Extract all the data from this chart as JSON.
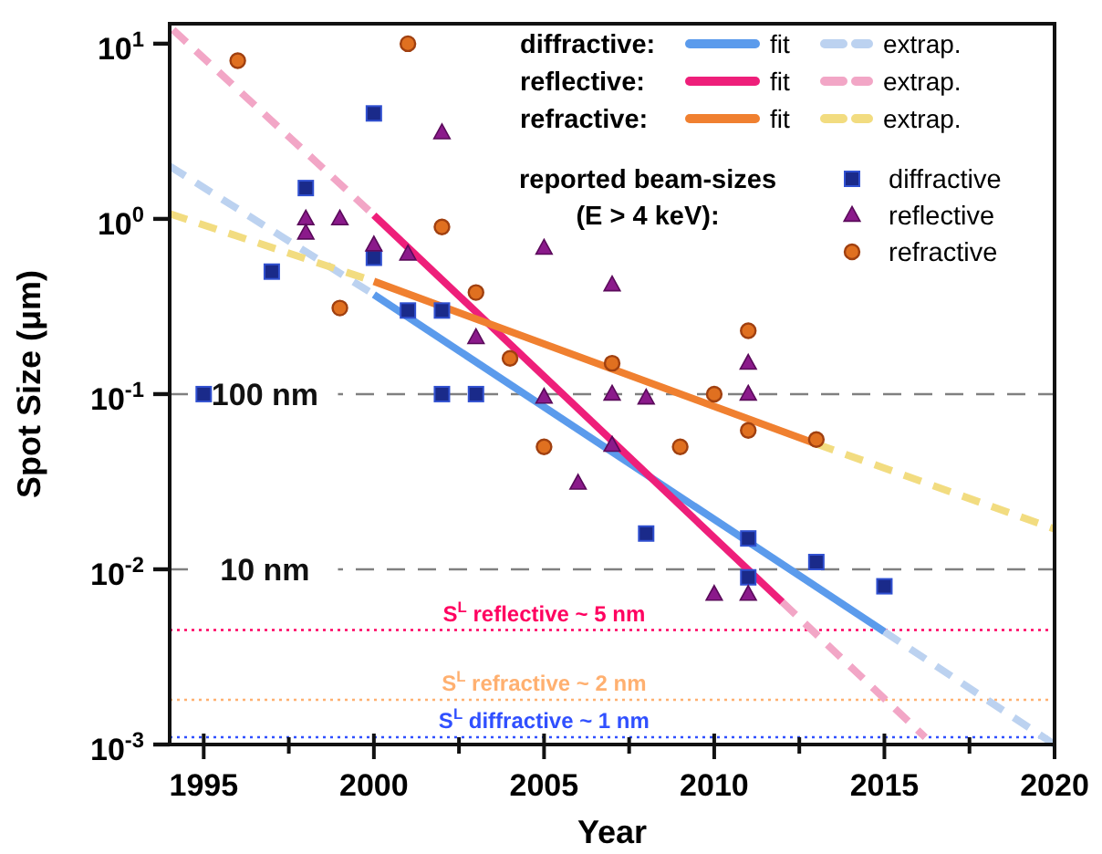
{
  "chart_data": {
    "type": "scatter",
    "xlabel": "Year",
    "ylabel": "Spot Size (μm)",
    "log": "y",
    "xlim": [
      1994,
      2020
    ],
    "ylim": [
      0.001,
      13
    ],
    "xticks": [
      1995,
      {
        "value": 1997.5,
        "label": null
      },
      2000,
      {
        "value": 2002.5,
        "label": null
      },
      2005,
      {
        "value": 2007.5,
        "label": null
      },
      2010,
      {
        "value": 2012.5,
        "label": null
      },
      2015,
      {
        "value": 2017.5,
        "label": null
      },
      2020
    ],
    "yticks": [
      {
        "value": 0.001,
        "label": "10$^{-3}$"
      },
      {
        "value": 0.01,
        "label": "10$^{-2}$"
      },
      {
        "value": 0.1,
        "label": "10$^{-1}$"
      },
      {
        "value": 1,
        "label": "10$^{0}$"
      },
      {
        "value": 10,
        "label": "10$^{1}$"
      }
    ],
    "grid": false,
    "legend": "top right",
    "legend_title": "reported beam-sizes (E > 4 keV):",
    "annotations": [
      "diffractive:",
      "reflective:",
      "refractive:"
    ],
    "ref_lines": [
      {
        "axis": "y",
        "value": 0.1,
        "label": "100 nm",
        "color": "#808080",
        "line_style": "dashed"
      },
      {
        "axis": "y",
        "value": 0.01,
        "label": "10 nm",
        "color": "#808080",
        "line_style": "dashed"
      },
      {
        "axis": "y",
        "value": 0.0045,
        "label": "S$^{L}$ reflective ~ 5 nm",
        "color": "#ff0060",
        "line_style": "dotted"
      },
      {
        "axis": "y",
        "value": 0.0018,
        "label": "S$^{L}$ refractive ~ 2 nm",
        "color": "#ffb070",
        "line_style": "dotted"
      },
      {
        "axis": "y",
        "value": 0.0011,
        "label": "S$^{L}$ diffractive ~ 1 nm",
        "color": "#3050ff",
        "line_style": "dotted"
      }
    ],
    "series": [
      {
        "name": "fit",
        "type": "line",
        "color": "#5b9bec",
        "line_style": "solid",
        "marker": "none",
        "x": [
          2000,
          2015
        ],
        "values": [
          0.37,
          0.0044
        ]
      },
      {
        "name": "extrap.",
        "type": "line",
        "color": "#bcd2f0",
        "line_style": "dashed",
        "marker": "none",
        "x": [
          1994,
          2000,
          2007.5,
          2015,
          2020
        ],
        "values": [
          2,
          0.37,
          null,
          0.0044,
          0.001
        ]
      },
      {
        "name": "fit",
        "type": "line",
        "color": "#ee1f7a",
        "line_style": "solid",
        "marker": "none",
        "x": [
          2000,
          2012
        ],
        "values": [
          1.05,
          0.0065
        ]
      },
      {
        "name": "extrap.",
        "type": "line",
        "color": "#f2a6c6",
        "line_style": "dashed",
        "marker": "none",
        "x": [
          1994.1,
          2000,
          2006,
          2012,
          2016.2
        ],
        "values": [
          12,
          1.05,
          null,
          0.0065,
          0.0011
        ]
      },
      {
        "name": "fit",
        "type": "line",
        "color": "#f08030",
        "line_style": "solid",
        "marker": "none",
        "x": [
          2000,
          2013
        ],
        "values": [
          0.44,
          0.052
        ]
      },
      {
        "name": "extrap.",
        "type": "line",
        "color": "#f2dc80",
        "line_style": "dashed",
        "marker": "none",
        "x": [
          1994,
          2000,
          2006.5,
          2013,
          2020
        ],
        "values": [
          1.07,
          0.44,
          null,
          0.052,
          0.017
        ]
      },
      {
        "name": "diffractive",
        "color": "#1a2a8a",
        "marker": "square",
        "x": [
          1995,
          1997,
          1998,
          2000,
          2000,
          2001,
          2002,
          2002,
          2003,
          2008,
          2011,
          2011,
          2013,
          2015
        ],
        "values": [
          0.1,
          0.5,
          1.5,
          4,
          0.6,
          0.3,
          0.3,
          0.1,
          0.1,
          0.016,
          0.015,
          0.009,
          0.011,
          0.008
        ]
      },
      {
        "name": "reflective",
        "color": "#8b1a8b",
        "marker": "triangle",
        "x": [
          1998,
          1998,
          1999,
          2000,
          2001,
          2002,
          2003,
          2005,
          2007,
          2005,
          2007,
          2008,
          2007,
          2006,
          2010,
          2011,
          2011,
          2011
        ],
        "values": [
          1,
          0.83,
          1,
          0.71,
          0.63,
          3.1,
          0.21,
          0.68,
          0.42,
          0.096,
          0.1,
          0.095,
          0.051,
          0.031,
          0.0072,
          0.0072,
          0.15,
          0.1
        ]
      },
      {
        "name": "refractive",
        "color": "#e07020",
        "marker": "circle",
        "x": [
          1996,
          2001,
          1999,
          2002,
          2003,
          2004,
          2005,
          2007,
          2009,
          2010,
          2011,
          2011,
          2013
        ],
        "values": [
          8,
          10,
          0.31,
          0.9,
          0.38,
          0.16,
          0.05,
          0.15,
          0.05,
          0.1,
          0.23,
          0.062,
          0.055
        ]
      }
    ]
  }
}
